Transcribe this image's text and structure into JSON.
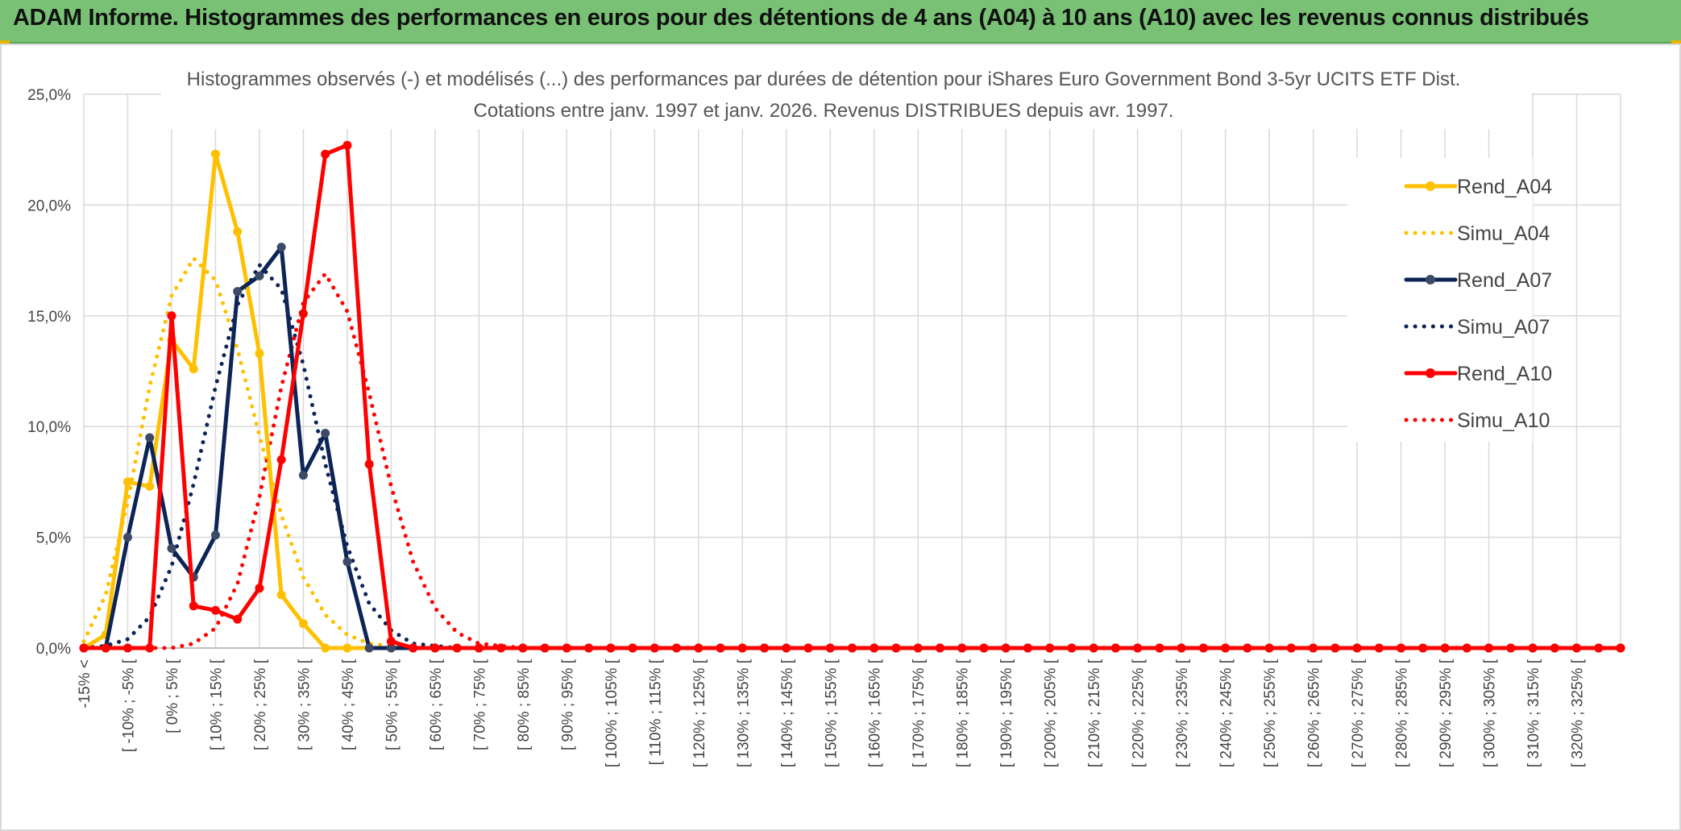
{
  "header": {
    "title": "ADAM Informe. Histogrammes des performances en euros pour des détentions de 4 ans (A04) à 10 ans (A10) avec les revenus connus distribués"
  },
  "chart_data": {
    "type": "line",
    "title": "Histogrammes observés (-) et modélisés (...) des performances par durées de détention pour iShares Euro Government Bond 3-5yr UCITS ETF Dist.",
    "subtitle": "Cotations entre janv. 1997 et janv. 2026. Revenus DISTRIBUES depuis avr. 1997.",
    "xlabel": "",
    "ylabel": "",
    "ylim": [
      0,
      25
    ],
    "yticks": [
      "0,0%",
      "5,0%",
      "10,0%",
      "15,0%",
      "20,0%",
      "25,0%"
    ],
    "grid": true,
    "legend_position": "right",
    "x_tick_labels": [
      "-15% <",
      "[ -10% ; -5% [",
      "[ 0% ; 5% [",
      "[ 10% ; 15% [",
      "[ 20% ; 25% [",
      "[ 30% ; 35% [",
      "[ 40% ; 45% [",
      "[ 50% ; 55% [",
      "[ 60% ; 65% [",
      "[ 70% ; 75% [",
      "[ 80% ; 85% [",
      "[ 90% ; 95% [",
      "[ 100% ; 105% [",
      "[ 110% ; 115% [",
      "[ 120% ; 125% [",
      "[ 130% ; 135% [",
      "[ 140% ; 145% [",
      "[ 150% ; 155% [",
      "[ 160% ; 165% [",
      "[ 170% ; 175% [",
      "[ 180% ; 185% [",
      "[ 190% ; 195% [",
      "[ 200% ; 205% [",
      "[ 210% ; 215% [",
      "[ 220% ; 225% [",
      "[ 230% ; 235% [",
      "[ 240% ; 245% [",
      "[ 250% ; 255% [",
      "[ 260% ; 265% [",
      "[ 270% ; 275% [",
      "[ 280% ; 285% [",
      "[ 290% ; 295% [",
      "[ 300% ; 305% [",
      "[ 310% ; 315% [",
      "[ 320% ; 325% ["
    ],
    "categories": [
      "-15% <",
      "[ -15% ; -10% [",
      "[ -10% ; -5% [",
      "[ -5% ; 0% [",
      "[ 0% ; 5% [",
      "[ 5% ; 10% [",
      "[ 10% ; 15% [",
      "[ 15% ; 20% [",
      "[ 20% ; 25% [",
      "[ 25% ; 30% [",
      "[ 30% ; 35% [",
      "[ 35% ; 40% [",
      "[ 40% ; 45% [",
      "[ 45% ; 50% [",
      "[ 50% ; 55% [",
      "[ 55% ; 60% [",
      "[ 60% ; 65% [",
      "[ 65% ; 70% [",
      "[ 70% ; 75% [",
      "[ 75% ; 80% [",
      "[ 80% ; 85% [",
      "[ 85% ; 90% [",
      "[ 90% ; 95% [",
      "[ 95% ; 100% [",
      "[ 100% ; 105% [",
      "[ 105% ; 110% [",
      "[ 110% ; 115% [",
      "[ 115% ; 120% [",
      "[ 120% ; 125% [",
      "[ 125% ; 130% [",
      "[ 130% ; 135% [",
      "[ 135% ; 140% [",
      "[ 140% ; 145% [",
      "[ 145% ; 150% [",
      "[ 150% ; 155% [",
      "[ 155% ; 160% [",
      "[ 160% ; 165% [",
      "[ 165% ; 170% [",
      "[ 170% ; 175% [",
      "[ 175% ; 180% [",
      "[ 180% ; 185% [",
      "[ 185% ; 190% [",
      "[ 190% ; 195% [",
      "[ 195% ; 200% [",
      "[ 200% ; 205% [",
      "[ 205% ; 210% [",
      "[ 210% ; 215% [",
      "[ 215% ; 220% [",
      "[ 220% ; 225% [",
      "[ 225% ; 230% [",
      "[ 230% ; 235% [",
      "[ 235% ; 240% [",
      "[ 240% ; 245% [",
      "[ 245% ; 250% [",
      "[ 250% ; 255% [",
      "[ 255% ; 260% [",
      "[ 260% ; 265% [",
      "[ 265% ; 270% [",
      "[ 270% ; 275% [",
      "[ 275% ; 280% [",
      "[ 280% ; 285% [",
      "[ 285% ; 290% [",
      "[ 290% ; 295% [",
      "[ 295% ; 300% [",
      "[ 300% ; 305% [",
      "[ 305% ; 310% [",
      "[ 310% ; 315% [",
      "[ 315% ; 320% [",
      "[ 320% ; 325% [",
      "[ 325% ; 330% [",
      "> 330%"
    ],
    "series": [
      {
        "name": "Rend_A04",
        "style": "solid",
        "color": "#ffc000",
        "values": [
          0,
          0.6,
          7.5,
          7.3,
          13.9,
          12.6,
          22.3,
          18.8,
          13.3,
          2.4,
          1.1,
          0,
          0,
          0,
          0,
          0,
          0,
          0,
          0,
          0,
          0,
          0,
          0,
          0,
          0,
          0,
          0,
          0,
          0,
          0,
          0,
          0,
          0,
          0,
          0,
          0,
          0,
          0,
          0,
          0,
          0,
          0,
          0,
          0,
          0,
          0,
          0,
          0,
          0,
          0,
          0,
          0,
          0,
          0,
          0,
          0,
          0,
          0,
          0,
          0,
          0,
          0,
          0,
          0,
          0,
          0,
          0,
          0,
          0,
          0,
          0
        ]
      },
      {
        "name": "Simu_A04",
        "style": "dotted",
        "color": "#ffc000",
        "values": [
          0.3,
          2.4,
          6.6,
          11.8,
          15.9,
          17.6,
          16.6,
          13.5,
          9.6,
          6.0,
          3.2,
          1.5,
          0.6,
          0.2,
          0.1,
          0,
          0,
          0,
          0,
          0,
          0,
          0,
          0,
          0,
          0,
          0,
          0,
          0,
          0,
          0,
          0,
          0,
          0,
          0,
          0,
          0,
          0,
          0,
          0,
          0,
          0,
          0,
          0,
          0,
          0,
          0,
          0,
          0,
          0,
          0,
          0,
          0,
          0,
          0,
          0,
          0,
          0,
          0,
          0,
          0,
          0,
          0,
          0,
          0,
          0,
          0,
          0,
          0,
          0,
          0,
          0
        ]
      },
      {
        "name": "Rend_A07",
        "style": "solid",
        "color": "#0d2456",
        "values": [
          0,
          0,
          5.0,
          9.5,
          4.5,
          3.2,
          5.1,
          16.1,
          16.8,
          18.1,
          7.8,
          9.7,
          3.9,
          0,
          0,
          0,
          0,
          0,
          0,
          0,
          0,
          0,
          0,
          0,
          0,
          0,
          0,
          0,
          0,
          0,
          0,
          0,
          0,
          0,
          0,
          0,
          0,
          0,
          0,
          0,
          0,
          0,
          0,
          0,
          0,
          0,
          0,
          0,
          0,
          0,
          0,
          0,
          0,
          0,
          0,
          0,
          0,
          0,
          0,
          0,
          0,
          0,
          0,
          0,
          0,
          0,
          0,
          0,
          0,
          0,
          0
        ]
      },
      {
        "name": "Simu_A07",
        "style": "dotted",
        "color": "#0d2456",
        "values": [
          0,
          0.1,
          0.4,
          1.4,
          3.7,
          7.4,
          11.8,
          15.5,
          17.3,
          16.2,
          12.8,
          8.3,
          4.6,
          2.0,
          0.8,
          0.2,
          0.1,
          0,
          0,
          0,
          0,
          0,
          0,
          0,
          0,
          0,
          0,
          0,
          0,
          0,
          0,
          0,
          0,
          0,
          0,
          0,
          0,
          0,
          0,
          0,
          0,
          0,
          0,
          0,
          0,
          0,
          0,
          0,
          0,
          0,
          0,
          0,
          0,
          0,
          0,
          0,
          0,
          0,
          0,
          0,
          0,
          0,
          0,
          0,
          0,
          0,
          0,
          0,
          0,
          0,
          0
        ]
      },
      {
        "name": "Rend_A10",
        "style": "solid",
        "color": "#ff0000",
        "values": [
          0,
          0,
          0,
          0,
          15.0,
          1.9,
          1.7,
          1.3,
          2.7,
          8.5,
          15.1,
          22.3,
          22.7,
          8.3,
          0.3,
          0,
          0,
          0,
          0,
          0,
          0,
          0,
          0,
          0,
          0,
          0,
          0,
          0,
          0,
          0,
          0,
          0,
          0,
          0,
          0,
          0,
          0,
          0,
          0,
          0,
          0,
          0,
          0,
          0,
          0,
          0,
          0,
          0,
          0,
          0,
          0,
          0,
          0,
          0,
          0,
          0,
          0,
          0,
          0,
          0,
          0,
          0,
          0,
          0,
          0,
          0,
          0,
          0,
          0,
          0,
          0
        ]
      },
      {
        "name": "Simu_A10",
        "style": "dotted",
        "color": "#ff0000",
        "values": [
          0,
          0,
          0,
          0,
          0,
          0.2,
          0.9,
          2.9,
          6.8,
          11.8,
          15.6,
          16.9,
          15.2,
          11.5,
          7.3,
          3.9,
          1.8,
          0.7,
          0.2,
          0.1,
          0,
          0,
          0,
          0,
          0,
          0,
          0,
          0,
          0,
          0,
          0,
          0,
          0,
          0,
          0,
          0,
          0,
          0,
          0,
          0,
          0,
          0,
          0,
          0,
          0,
          0,
          0,
          0,
          0,
          0,
          0,
          0,
          0,
          0,
          0,
          0,
          0,
          0,
          0,
          0,
          0,
          0,
          0,
          0,
          0,
          0,
          0,
          0,
          0,
          0,
          0
        ]
      }
    ]
  }
}
